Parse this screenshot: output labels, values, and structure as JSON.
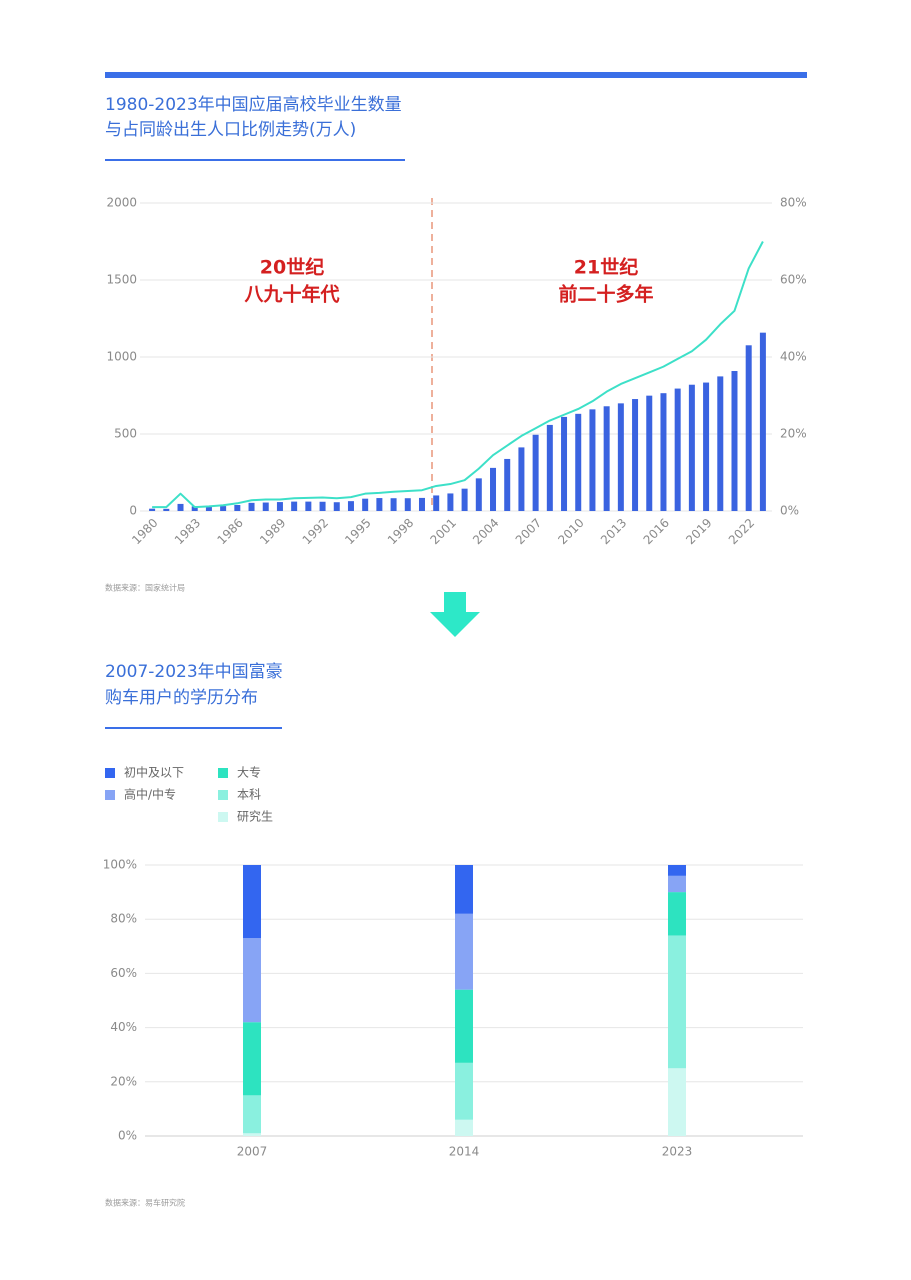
{
  "chart_data": [
    {
      "type": "bar",
      "title": [
        "1980-2023年中国应届高校毕业生数量",
        "与占同龄出生人口比例走势(万人)"
      ],
      "annotations": [
        [
          "20世纪",
          "八九十年代"
        ],
        [
          "21世纪",
          "前二十多年"
        ]
      ],
      "source": "数据来源：国家统计局",
      "categories": [
        "1980",
        null,
        null,
        "1983",
        null,
        null,
        "1986",
        null,
        null,
        "1989",
        null,
        null,
        "1992",
        null,
        null,
        "1995",
        null,
        null,
        "1998",
        null,
        null,
        "2001",
        null,
        null,
        "2004",
        null,
        null,
        "2007",
        null,
        null,
        "2010",
        null,
        null,
        "2013",
        null,
        null,
        "2016",
        null,
        null,
        "2019",
        null,
        null,
        "2022",
        null
      ],
      "series": [
        {
          "type": "bar",
          "color": "#3a63e0",
          "values": [
            15,
            14,
            46,
            30,
            29,
            32,
            39,
            53,
            55,
            58,
            61,
            61,
            60,
            57,
            64,
            80,
            84,
            83,
            83,
            85,
            101,
            114,
            145,
            212,
            280,
            338,
            413,
            495,
            559,
            611,
            631,
            660,
            680,
            699,
            727,
            749,
            765,
            795,
            820,
            834,
            874,
            909,
            1076,
            1158
          ]
        },
        {
          "type": "line",
          "axis": "y2",
          "color": "#3de0c8",
          "values": [
            1,
            1,
            4.5,
            1,
            1.2,
            1.5,
            2,
            2.8,
            3,
            3,
            3.3,
            3.4,
            3.5,
            3.3,
            3.6,
            4.5,
            4.7,
            5,
            5.2,
            5.4,
            6.5,
            7,
            8,
            11,
            14.5,
            17,
            19.5,
            21.5,
            23.5,
            25,
            26.5,
            28.5,
            31,
            33,
            34.5,
            36,
            37.5,
            39.5,
            41.5,
            44.5,
            48.5,
            52,
            63,
            70
          ]
        }
      ],
      "ylim": [
        0,
        2000
      ],
      "yticks": [
        0,
        500,
        1000,
        1500,
        2000
      ],
      "y2lim": [
        0,
        80
      ],
      "y2ticks": [
        {
          "value": 0,
          "label": "0%"
        },
        {
          "value": 20,
          "label": "20%"
        },
        {
          "value": 40,
          "label": "40%"
        },
        {
          "value": 60,
          "label": "60%"
        },
        {
          "value": 80,
          "label": "80%"
        }
      ],
      "grid": true
    },
    {
      "type": "stacked_bar",
      "title": [
        "2007-2023年中国富豪",
        "购车用户的学历分布"
      ],
      "source": "数据来源：易车研究院",
      "categories": [
        "2007",
        "2014",
        "2023"
      ],
      "series": [
        {
          "name": "初中及以下",
          "color": "#3366f0",
          "values": [
            27,
            18,
            4
          ]
        },
        {
          "name": "高中/中专",
          "color": "#87a4f5",
          "values": [
            31,
            28,
            6
          ]
        },
        {
          "name": "大专",
          "color": "#2de3c0",
          "values": [
            27,
            27,
            16
          ]
        },
        {
          "name": "本科",
          "color": "#8af0df",
          "values": [
            14,
            21,
            49
          ]
        },
        {
          "name": "研究生",
          "color": "#cdf8f1",
          "values": [
            1,
            6,
            25
          ]
        }
      ],
      "ylim": [
        0,
        100
      ],
      "yticks": [
        {
          "value": 0,
          "label": "0%"
        },
        {
          "value": 20,
          "label": "20%"
        },
        {
          "value": 40,
          "label": "40%"
        },
        {
          "value": 60,
          "label": "60%"
        },
        {
          "value": 80,
          "label": "80%"
        },
        {
          "value": 100,
          "label": "100%"
        }
      ],
      "grid": true
    }
  ]
}
